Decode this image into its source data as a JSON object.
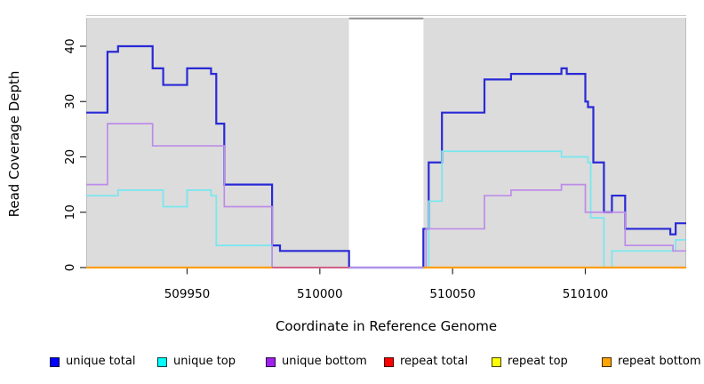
{
  "chart_data": {
    "type": "line",
    "subtype": "step",
    "title": "",
    "xlabel": "Coordinate in Reference Genome",
    "ylabel": "Read Coverage Depth",
    "xlim": [
      509912,
      510138
    ],
    "ylim": [
      0,
      45
    ],
    "xticks": [
      509950,
      510000,
      510050,
      510100
    ],
    "yticks": [
      0,
      10,
      20,
      30,
      40
    ],
    "grid": false,
    "legend_position": "bottom",
    "panel_bg": "#dcdcdc",
    "mask_color": "#ffffff",
    "mask_border_color": "#8f8f8f",
    "panel_edge_color": "#bdbdbd",
    "tick_color": "#2a2a2a",
    "shaded_regions": [
      [
        509912,
        510011
      ],
      [
        510039,
        510138
      ]
    ],
    "masked_region": [
      510011,
      510039
    ],
    "series": [
      {
        "name": "unique total",
        "legend_color": "#0000ff",
        "plot_color": "#2929d6",
        "line_width": 2.2,
        "steps": [
          [
            509912,
            28
          ],
          [
            509920,
            39
          ],
          [
            509924,
            40
          ],
          [
            509937,
            36
          ],
          [
            509941,
            33
          ],
          [
            509950,
            36
          ],
          [
            509959,
            35
          ],
          [
            509961,
            26
          ],
          [
            509964,
            15
          ],
          [
            509982,
            4
          ],
          [
            509985,
            3
          ],
          [
            510011,
            0
          ],
          [
            510039,
            7
          ],
          [
            510041,
            19
          ],
          [
            510046,
            28
          ],
          [
            510062,
            34
          ],
          [
            510072,
            35
          ],
          [
            510091,
            36
          ],
          [
            510093,
            35
          ],
          [
            510100,
            30
          ],
          [
            510101,
            29
          ],
          [
            510103,
            19
          ],
          [
            510107,
            10
          ],
          [
            510110,
            13
          ],
          [
            510115,
            7
          ],
          [
            510132,
            6
          ],
          [
            510134,
            8
          ]
        ],
        "xend": 510138
      },
      {
        "name": "unique top",
        "legend_color": "#00ffff",
        "plot_color": "#76e7ef",
        "line_width": 1.7,
        "steps": [
          [
            509912,
            13
          ],
          [
            509924,
            14
          ],
          [
            509941,
            11
          ],
          [
            509950,
            14
          ],
          [
            509959,
            13
          ],
          [
            509961,
            4
          ],
          [
            509982,
            0
          ],
          [
            510041,
            12
          ],
          [
            510046,
            21
          ],
          [
            510091,
            20
          ],
          [
            510101,
            19
          ],
          [
            510102,
            9
          ],
          [
            510107,
            0
          ],
          [
            510110,
            3
          ],
          [
            510134,
            5
          ]
        ],
        "xend": 510138
      },
      {
        "name": "unique bottom",
        "legend_color": "#a020f0",
        "plot_color": "#bd8ce8",
        "line_width": 1.7,
        "steps": [
          [
            509912,
            15
          ],
          [
            509920,
            26
          ],
          [
            509937,
            22
          ],
          [
            509964,
            11
          ],
          [
            509982,
            0
          ],
          [
            510040,
            7
          ],
          [
            510062,
            13
          ],
          [
            510072,
            14
          ],
          [
            510091,
            15
          ],
          [
            510100,
            10
          ],
          [
            510115,
            4
          ],
          [
            510133,
            3
          ]
        ],
        "xend": 510138
      },
      {
        "name": "repeat total",
        "legend_color": "#ff0000",
        "plot_color": "#d65578",
        "line_width": 1.7,
        "constant_value": 0,
        "visible_segments": [
          [
            509982,
            510011
          ]
        ]
      },
      {
        "name": "repeat top",
        "legend_color": "#ffff00",
        "plot_color": "#ffff00",
        "line_width": 1.7,
        "constant_value": 0,
        "visible_segments": []
      },
      {
        "name": "repeat bottom",
        "legend_color": "#ffa500",
        "plot_color": "#ff9d0a",
        "line_width": 2.2,
        "constant_value": 0,
        "visible_segments": [
          [
            509912,
            509982
          ],
          [
            510039,
            510138
          ]
        ]
      }
    ]
  },
  "legend_item_lefts": [
    56,
    177,
    299,
    432,
    553,
    677
  ]
}
